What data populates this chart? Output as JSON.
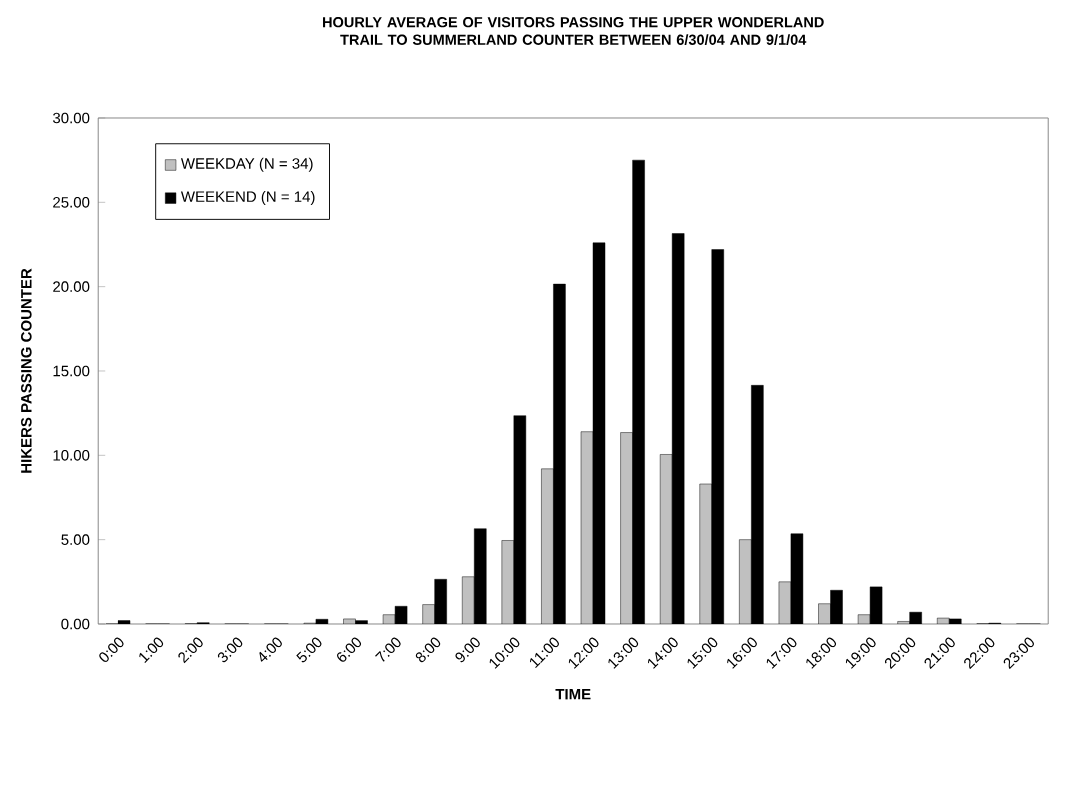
{
  "chart_data": {
    "type": "bar",
    "title": "HOURLY AVERAGE OF VISITORS PASSING THE UPPER WONDERLAND TRAIL TO SUMMERLAND COUNTER BETWEEN 6/30/04 AND 9/1/04",
    "xlabel": "TIME",
    "ylabel": "HIKERS PASSING COUNTER",
    "categories": [
      "0:00",
      "1:00",
      "2:00",
      "3:00",
      "4:00",
      "5:00",
      "6:00",
      "7:00",
      "8:00",
      "9:00",
      "10:00",
      "11:00",
      "12:00",
      "13:00",
      "14:00",
      "15:00",
      "16:00",
      "17:00",
      "18:00",
      "19:00",
      "20:00",
      "21:00",
      "22:00",
      "23:00"
    ],
    "series": [
      {
        "name": "WEEKDAY (N = 34)",
        "color": "#c0c0c0",
        "values": [
          0,
          0,
          0.02,
          0,
          0,
          0.05,
          0.3,
          0.55,
          1.15,
          2.8,
          4.95,
          9.2,
          11.4,
          11.35,
          10.05,
          8.3,
          5.0,
          2.5,
          1.2,
          0.55,
          0.15,
          0.35,
          0.02,
          0
        ]
      },
      {
        "name": "WEEKEND (N = 14)",
        "color": "#000000",
        "values": [
          0.2,
          0,
          0.08,
          0,
          0,
          0.28,
          0.2,
          1.05,
          2.65,
          5.65,
          12.35,
          20.15,
          22.6,
          27.5,
          23.15,
          22.2,
          14.15,
          5.35,
          2.0,
          2.2,
          0.7,
          0.3,
          0.05,
          0
        ]
      }
    ],
    "ylim": [
      0,
      30
    ],
    "yticks": [
      {
        "value": 0,
        "label": "0.00"
      },
      {
        "value": 5,
        "label": "5.00"
      },
      {
        "value": 10,
        "label": "10.00"
      },
      {
        "value": 15,
        "label": "15.00"
      },
      {
        "value": 20,
        "label": "20.00"
      },
      {
        "value": 25,
        "label": "25.00"
      },
      {
        "value": 30,
        "label": "30.00"
      }
    ],
    "legend": "top left",
    "grid": false
  }
}
